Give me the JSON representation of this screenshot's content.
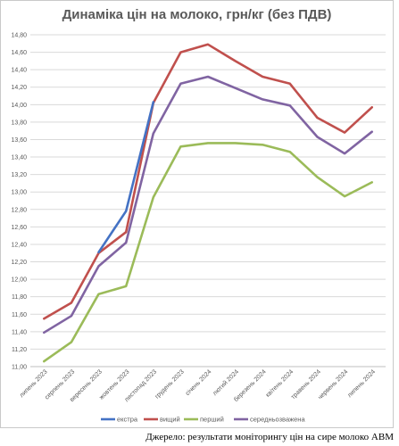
{
  "chart_data": {
    "type": "line",
    "title": "Динаміка цін на молоко, грн/кг (без ПДВ)",
    "xlabel": "",
    "ylabel": "",
    "ylim": [
      11.0,
      14.8
    ],
    "y_step": 0.2,
    "grid": "horizontal",
    "legend_position": "bottom",
    "categories": [
      "липень 2023",
      "серпень 2023",
      "вересень 2023",
      "жовтень 2023",
      "листопад 2023",
      "грудень 2023",
      "січень 2024",
      "лютий 2024",
      "березень 2024",
      "квітень 2024",
      "травень 2024",
      "червень 2024",
      "липень 2024"
    ],
    "series": [
      {
        "name": "екстра",
        "color": "#4472C4",
        "values": [
          null,
          null,
          12.31,
          12.78,
          14.03,
          null,
          null,
          null,
          null,
          null,
          null,
          null,
          null
        ]
      },
      {
        "name": "вищий",
        "color": "#C0504D",
        "values": [
          11.55,
          11.73,
          12.3,
          12.54,
          14.02,
          14.6,
          14.69,
          14.5,
          14.32,
          14.24,
          13.85,
          13.68,
          13.97
        ]
      },
      {
        "name": "перший",
        "color": "#9BBB59",
        "values": [
          11.06,
          11.28,
          11.83,
          11.92,
          12.94,
          13.52,
          13.56,
          13.56,
          13.54,
          13.46,
          13.17,
          12.95,
          13.11
        ]
      },
      {
        "name": "середньозважена",
        "color": "#8064A2",
        "values": [
          11.39,
          11.58,
          12.15,
          12.42,
          13.67,
          14.24,
          14.32,
          14.19,
          14.06,
          13.99,
          13.63,
          13.44,
          13.69
        ]
      }
    ]
  },
  "source_note": "Джерело: результати моніторингу цін на сире молоко АВМ"
}
